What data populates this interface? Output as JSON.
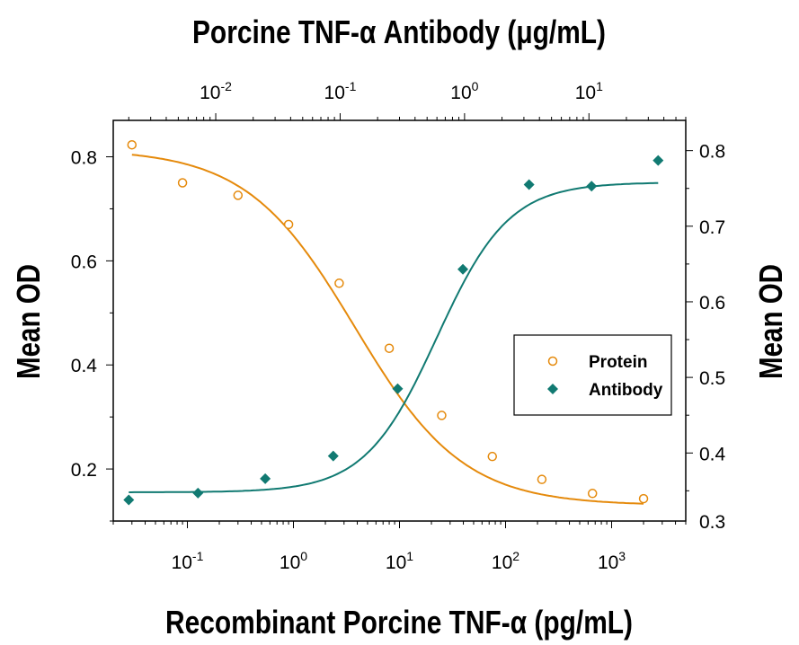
{
  "chart_data": {
    "type": "scatter",
    "title": "",
    "x_bottom": {
      "label": "Recombinant Porcine TNF-α (pg/mL)",
      "scale": "log",
      "range": [
        0.02,
        5000
      ],
      "ticks": [
        {
          "value": 0.1,
          "base": "10",
          "exp": "-1"
        },
        {
          "value": 1,
          "base": "10",
          "exp": "0"
        },
        {
          "value": 10,
          "base": "10",
          "exp": "1"
        },
        {
          "value": 100,
          "base": "10",
          "exp": "2"
        },
        {
          "value": 1000,
          "base": "10",
          "exp": "3"
        }
      ]
    },
    "x_top": {
      "label": "Porcine TNF-α Antibody (μg/mL)",
      "scale": "log",
      "range": [
        0.0015,
        60
      ],
      "ticks": [
        {
          "value": 0.01,
          "base": "10",
          "exp": "-2"
        },
        {
          "value": 0.1,
          "base": "10",
          "exp": "-1"
        },
        {
          "value": 1,
          "base": "10",
          "exp": "0"
        },
        {
          "value": 10,
          "base": "10",
          "exp": "1"
        }
      ]
    },
    "y_left": {
      "label": "Mean OD",
      "range": [
        0.1,
        0.87
      ],
      "ticks": [
        {
          "value": 0.2,
          "label": "0.2"
        },
        {
          "value": 0.4,
          "label": "0.4"
        },
        {
          "value": 0.6,
          "label": "0.6"
        },
        {
          "value": 0.8,
          "label": "0.8"
        }
      ]
    },
    "y_right": {
      "label": "Mean OD",
      "range": [
        0.31,
        0.84
      ],
      "ticks": [
        {
          "value": 0.3,
          "label": "0.3"
        },
        {
          "value": 0.4,
          "label": "0.4"
        },
        {
          "value": 0.5,
          "label": "0.5"
        },
        {
          "value": 0.6,
          "label": "0.6"
        },
        {
          "value": 0.7,
          "label": "0.7"
        },
        {
          "value": 0.8,
          "label": "0.8"
        }
      ]
    },
    "legend": {
      "position": "right",
      "entries": [
        "Protein",
        "Antibody"
      ]
    },
    "series": [
      {
        "name": "Protein",
        "marker": "open-circle",
        "color": "#e58a0c",
        "x_axis": "bottom",
        "y_axis": "left",
        "x": [
          0.03,
          0.09,
          0.3,
          0.9,
          2.7,
          8,
          25,
          75,
          220,
          660,
          2000
        ],
        "y": [
          0.823,
          0.75,
          0.726,
          0.67,
          0.557,
          0.432,
          0.303,
          0.224,
          0.18,
          0.153,
          0.143
        ],
        "fit": {
          "top": 0.815,
          "bottom": 0.13,
          "ec50": 3.8,
          "hill": 0.85
        }
      },
      {
        "name": "Antibody",
        "marker": "filled-diamond",
        "color": "#117a72",
        "x_axis": "top",
        "y_axis": "right",
        "x": [
          0.002,
          0.0072,
          0.025,
          0.088,
          0.29,
          0.97,
          3.3,
          10.5,
          36
        ],
        "y": [
          0.338,
          0.347,
          0.366,
          0.396,
          0.485,
          0.643,
          0.755,
          0.753,
          0.787
        ],
        "fit": {
          "bottom": 0.348,
          "top": 0.758,
          "ec50": 0.6,
          "hill": 1.5
        }
      }
    ]
  }
}
